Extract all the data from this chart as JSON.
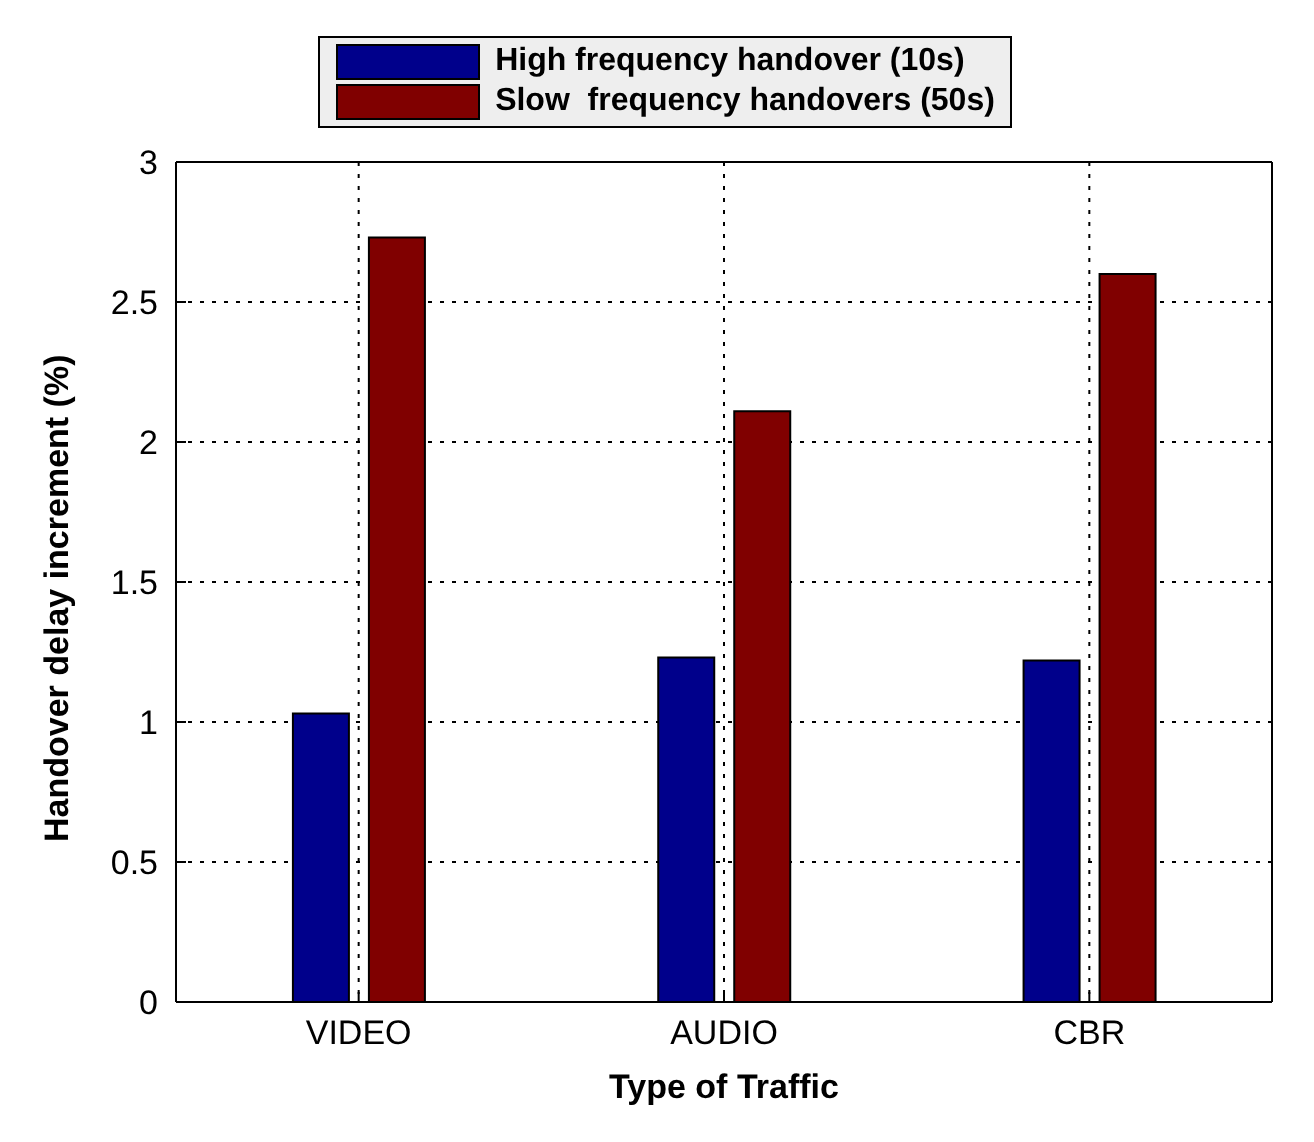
{
  "chart_data": {
    "type": "bar",
    "xlabel": "Type of Traffic",
    "ylabel": "Handover delay increment (%)",
    "categories": [
      "VIDEO",
      "AUDIO",
      "CBR"
    ],
    "series": [
      {
        "name": "High frequency handover (10s)",
        "color": "#00008b",
        "values": [
          1.03,
          1.23,
          1.22
        ]
      },
      {
        "name": "Slow  frequency handovers (50s)",
        "color": "#800000",
        "values": [
          2.73,
          2.11,
          2.6
        ]
      }
    ],
    "ylim": [
      0,
      3
    ],
    "yticks": [
      0,
      0.5,
      1,
      1.5,
      2,
      2.5,
      3
    ],
    "grid": true,
    "legend": "top"
  }
}
